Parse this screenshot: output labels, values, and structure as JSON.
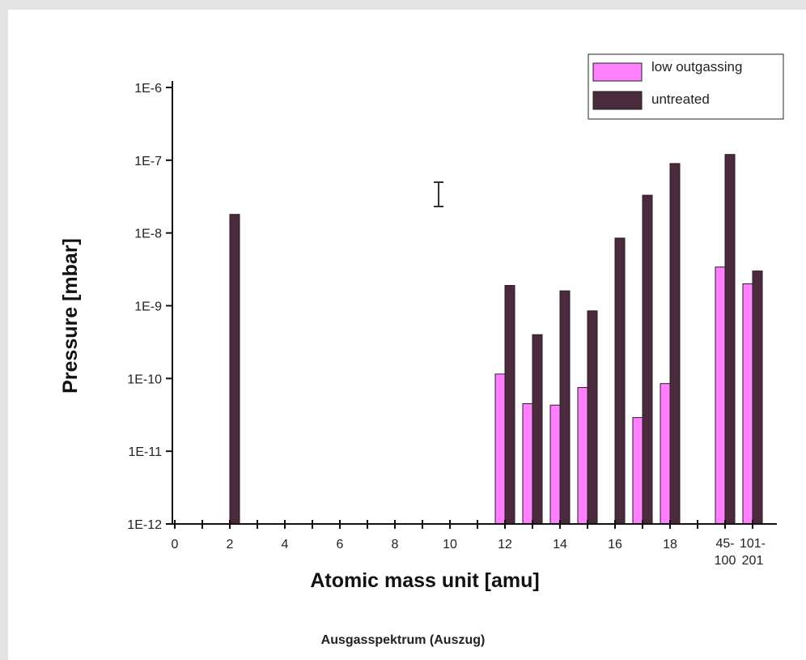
{
  "caption": "Ausgasspektrum (Auszug)",
  "icons": {
    "cursor": "text-cursor-icon"
  },
  "colors": {
    "low_outgassing": "#ff80ff",
    "untreated": "#4a2a3c"
  },
  "chart_data": {
    "type": "bar",
    "title": "",
    "xlabel": "Atomic mass unit [amu]",
    "ylabel": "Pressure [mbar]",
    "yscale": "log",
    "ylim": [
      1e-12,
      1e-06
    ],
    "y_ticks": [
      "1E-12",
      "1E-11",
      "1E-10",
      "1E-9",
      "1E-8",
      "1E-7",
      "1E-6"
    ],
    "x_ticks": [
      "0",
      "2",
      "4",
      "6",
      "8",
      "10",
      "12",
      "14",
      "16",
      "18",
      "45-100",
      "101-201"
    ],
    "legend_position": "top-right",
    "categories": [
      "2",
      "12",
      "13",
      "14",
      "15",
      "16",
      "17",
      "18",
      "45-100",
      "101-201"
    ],
    "series": [
      {
        "name": "low outgassing",
        "values": [
          null,
          1.15e-10,
          4.5e-11,
          4.3e-11,
          7.5e-11,
          null,
          2.9e-11,
          8.5e-11,
          3.4e-09,
          2e-09
        ]
      },
      {
        "name": "untreated",
        "values": [
          1.8e-08,
          1.9e-09,
          4e-10,
          1.6e-09,
          8.5e-10,
          8.5e-09,
          3.3e-08,
          9e-08,
          1.2e-07,
          3e-09
        ]
      }
    ]
  }
}
